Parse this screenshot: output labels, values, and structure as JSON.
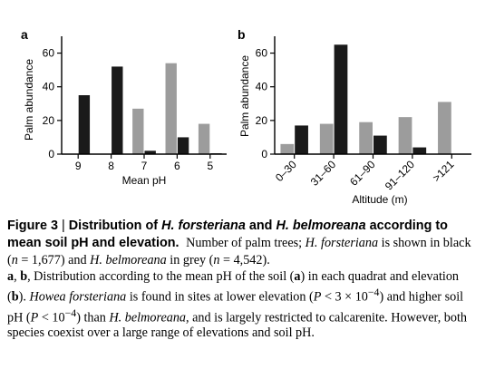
{
  "caption": {
    "figure_label": "Figure 3",
    "separator": "|",
    "title_pre": "Distribution of",
    "species1": "H. forsteriana",
    "title_and": "and",
    "species2": "H. belmoreana",
    "title_post": "according to mean soil pH and elevation.",
    "intro_a": "Number of palm trees;",
    "intro_b": "is shown in black (",
    "n": "n",
    "n1_eq": " = 1,677) and",
    "intro_c": "in grey (",
    "n2_eq": " = 4,542).",
    "bold_a": "a",
    "comma": ", ",
    "bold_b": "b",
    "body_1": ", Distribution according to the mean pH of the soil (",
    "body_2": ") in each quadrat and elevation (",
    "body_3": ").",
    "howea": "Howea forsteriana",
    "body_4": "is found in sites at lower elevation (",
    "P": "P",
    "p1": " < 3 × 10",
    "p1_exp": "−4",
    "body_5": ") and higher soil pH (",
    "p2": " < 10",
    "p2_exp": "−4",
    "body_6": ") than",
    "body_7": ", and is largely restricted to calcarenite. However, both species coexist over a large range of elevations and soil pH."
  },
  "colors": {
    "forsteriana": "#1a1a1a",
    "belmoreana": "#9c9c9c",
    "axis": "#000000"
  },
  "chart_data": [
    {
      "type": "bar",
      "panel": "a",
      "xlabel": "Mean pH",
      "ylabel": "Palm abundance",
      "ylim": [
        0,
        70
      ],
      "yticks": [
        "0",
        "20",
        "40",
        "60"
      ],
      "categories": [
        "9",
        "8",
        "7",
        "6",
        "5"
      ],
      "series": [
        {
          "values": [
            0,
            0,
            27,
            54,
            18
          ],
          "color": "#9c9c9c"
        },
        {
          "values": [
            35,
            52,
            2,
            10,
            0.5
          ],
          "color": "#1a1a1a"
        }
      ]
    },
    {
      "type": "bar",
      "panel": "b",
      "xlabel": "Altitude (m)",
      "ylabel": "Palm abundance",
      "ylim": [
        0,
        70
      ],
      "yticks": [
        "0",
        "20",
        "40",
        "60"
      ],
      "categories": [
        "0–30",
        "31–60",
        "61–90",
        "91–120",
        ">121"
      ],
      "series": [
        {
          "values": [
            6,
            18,
            19,
            22,
            31
          ],
          "color": "#9c9c9c"
        },
        {
          "values": [
            17,
            65,
            11,
            4,
            0
          ],
          "color": "#1a1a1a"
        }
      ]
    }
  ]
}
